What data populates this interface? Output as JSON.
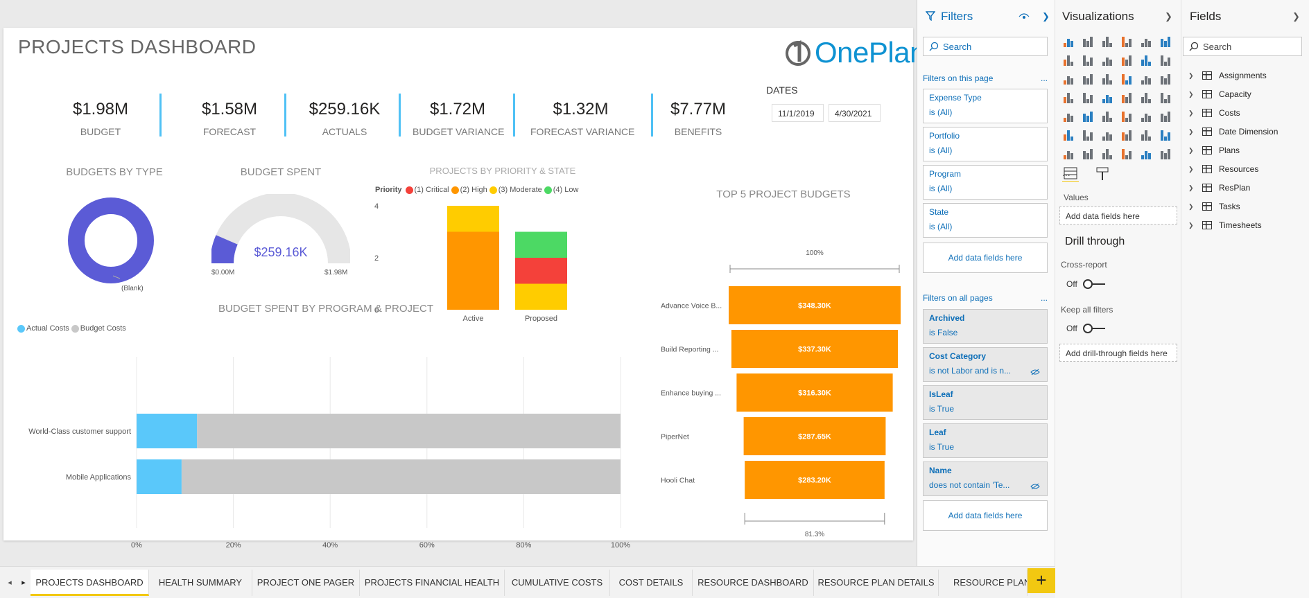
{
  "report": {
    "title": "PROJECTS DASHBOARD",
    "logo_text": "OnePlan",
    "kpis": [
      {
        "value": "$1.98M",
        "label": "BUDGET"
      },
      {
        "value": "$1.58M",
        "label": "FORECAST"
      },
      {
        "value": "$259.16K",
        "label": "ACTUALS"
      },
      {
        "value": "$1.72M",
        "label": "BUDGET VARIANCE"
      },
      {
        "value": "$1.32M",
        "label": "FORECAST VARIANCE"
      },
      {
        "value": "$7.77M",
        "label": "BENEFITS"
      }
    ],
    "dates": {
      "label": "DATES",
      "start": "11/1/2019",
      "end": "4/30/2021"
    },
    "budgets_by_type": {
      "title": "BUDGETS BY TYPE",
      "slice_label": "(Blank)",
      "color": "#5b5bd6"
    },
    "budget_spent": {
      "title": "BUDGET SPENT",
      "value_label": "$259.16K",
      "min_label": "$0.00M",
      "max_label": "$1.98M",
      "value": 259.16,
      "max": 1980,
      "fill_color": "#5b5bd6"
    }
  },
  "chart_data": [
    {
      "type": "bar",
      "stacked": true,
      "title": "PROJECTS BY PRIORITY & STATE",
      "legend_title": "Priority",
      "categories": [
        "Active",
        "Proposed"
      ],
      "series": [
        {
          "name": "(1) Critical",
          "color": "#f4413a",
          "values": [
            0,
            1
          ]
        },
        {
          "name": "(2) High",
          "color": "#ff9600",
          "values": [
            3,
            0
          ]
        },
        {
          "name": "(3) Moderate",
          "color": "#ffcc00",
          "values": [
            1,
            1
          ]
        },
        {
          "name": "(4) Low",
          "color": "#4cd964",
          "values": [
            0,
            1
          ]
        }
      ],
      "ylim": [
        0,
        4
      ],
      "yticks": [
        "0",
        "2",
        "4"
      ]
    },
    {
      "type": "bar",
      "orientation": "horizontal",
      "stacked": true,
      "percent": true,
      "title": "BUDGET SPENT BY PROGRAM & PROJECT",
      "categories": [
        "World-Class customer support",
        "Mobile Applications"
      ],
      "series": [
        {
          "name": "Actual Costs",
          "color": "#5ac8fa",
          "values": [
            12.5,
            9.3
          ]
        },
        {
          "name": "Budget Costs",
          "color": "#c8c8c8",
          "values": [
            87.5,
            90.7
          ]
        }
      ],
      "xticks": [
        "0%",
        "20%",
        "40%",
        "60%",
        "80%",
        "100%"
      ],
      "xlim": [
        0,
        100
      ]
    },
    {
      "type": "funnel",
      "title": "TOP 5 PROJECT BUDGETS",
      "categories": [
        "Advance Voice B...",
        "Build Reporting ...",
        "Enhance buying ...",
        "PiperNet",
        "Hooli Chat"
      ],
      "values": [
        348.3,
        337.3,
        316.3,
        287.65,
        283.2
      ],
      "value_labels": [
        "$348.30K",
        "$337.30K",
        "$316.30K",
        "$287.65K",
        "$283.20K"
      ],
      "top_pct_label": "100%",
      "bottom_pct_label": "81.3%",
      "color": "#ff9600"
    }
  ],
  "tabs": {
    "items": [
      "PROJECTS DASHBOARD",
      "HEALTH SUMMARY",
      "PROJECT ONE PAGER",
      "PROJECTS FINANCIAL HEALTH",
      "CUMULATIVE COSTS",
      "COST DETAILS",
      "RESOURCE DASHBOARD",
      "RESOURCE PLAN DETAILS",
      "RESOURCE PLAN VS"
    ],
    "add_label": "+"
  },
  "filters": {
    "title": "Filters",
    "search_placeholder": "Search",
    "on_page_label": "Filters on this page",
    "on_page": [
      {
        "name": "Expense Type",
        "value": "is (All)"
      },
      {
        "name": "Portfolio",
        "value": "is (All)"
      },
      {
        "name": "Program",
        "value": "is (All)"
      },
      {
        "name": "State",
        "value": "is (All)"
      }
    ],
    "add_label": "Add data fields here",
    "all_pages_label": "Filters on all pages",
    "all_pages": [
      {
        "name": "Archived",
        "value": "is False"
      },
      {
        "name": "Cost Category",
        "value": "is not Labor and is n..."
      },
      {
        "name": "IsLeaf",
        "value": "is True"
      },
      {
        "name": "Leaf",
        "value": "is True"
      },
      {
        "name": "Name",
        "value": "does not contain 'Te..."
      }
    ],
    "more": "..."
  },
  "visualizations": {
    "title": "Visualizations",
    "values_label": "Values",
    "values_placeholder": "Add data fields here",
    "drill_title": "Drill through",
    "cross_report": "Cross-report",
    "cross_report_state": "Off",
    "keep_filters": "Keep all filters",
    "keep_filters_state": "Off",
    "drill_placeholder": "Add drill-through fields here",
    "more": "..."
  },
  "fields": {
    "title": "Fields",
    "search_placeholder": "Search",
    "tables": [
      "Assignments",
      "Capacity",
      "Costs",
      "Date Dimension",
      "Plans",
      "Resources",
      "ResPlan",
      "Tasks",
      "Timesheets"
    ]
  }
}
